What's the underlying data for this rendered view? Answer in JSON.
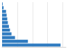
{
  "chart_data": {
    "type": "bar",
    "orientation": "horizontal",
    "categories": [
      null,
      null,
      null,
      null,
      null,
      null,
      null,
      null,
      null,
      null,
      null,
      null
    ],
    "values": [
      38500,
      17000,
      8500,
      6200,
      5200,
      4500,
      3800,
      3400,
      3000,
      2600,
      1000,
      400
    ],
    "color": "#2f7bc0",
    "xlim": [
      0,
      42000
    ],
    "xticks": [
      0,
      10000,
      20000,
      30000,
      40000
    ],
    "grid": true,
    "tick_labels": false
  }
}
